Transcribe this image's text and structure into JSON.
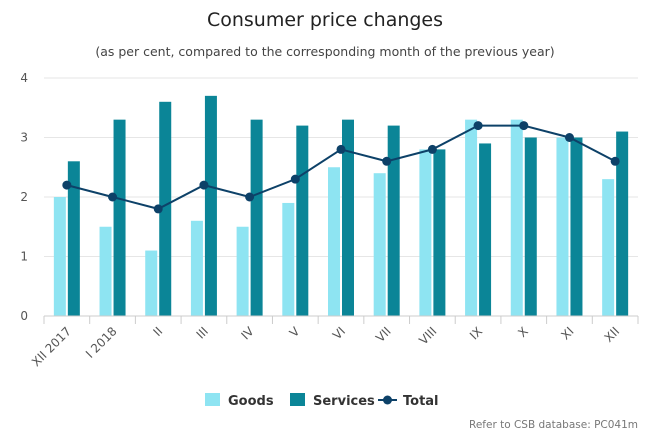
{
  "chart_data": {
    "type": "bar",
    "title": "Consumer price changes",
    "subtitle": "(as per cent, compared to the corresponding month of the previous year)",
    "categories": [
      "XII 2017",
      "I 2018",
      "II",
      "III",
      "IV",
      "V",
      "VI",
      "VII",
      "VIII",
      "IX",
      "X",
      "XI",
      "XII"
    ],
    "ylim": [
      0,
      4
    ],
    "yticks": [
      0,
      1,
      2,
      3,
      4
    ],
    "grid": true,
    "legend_position": "bottom-center",
    "series": [
      {
        "name": "Goods",
        "type": "bar",
        "color": "#8ee4f2",
        "values": [
          2.0,
          1.5,
          1.1,
          1.6,
          1.5,
          1.9,
          2.5,
          2.4,
          2.8,
          3.3,
          3.3,
          3.0,
          2.3
        ]
      },
      {
        "name": "Services",
        "type": "bar",
        "color": "#0b8597",
        "values": [
          2.6,
          3.3,
          3.6,
          3.7,
          3.3,
          3.2,
          3.3,
          3.2,
          2.8,
          2.9,
          3.0,
          3.0,
          3.1
        ]
      },
      {
        "name": "Total",
        "type": "line",
        "color": "#0d4168",
        "values": [
          2.2,
          2.0,
          1.8,
          2.2,
          2.0,
          2.3,
          2.8,
          2.6,
          2.8,
          3.2,
          3.2,
          3.0,
          2.6
        ]
      }
    ],
    "credit": "Refer to CSB database: PC041m"
  }
}
